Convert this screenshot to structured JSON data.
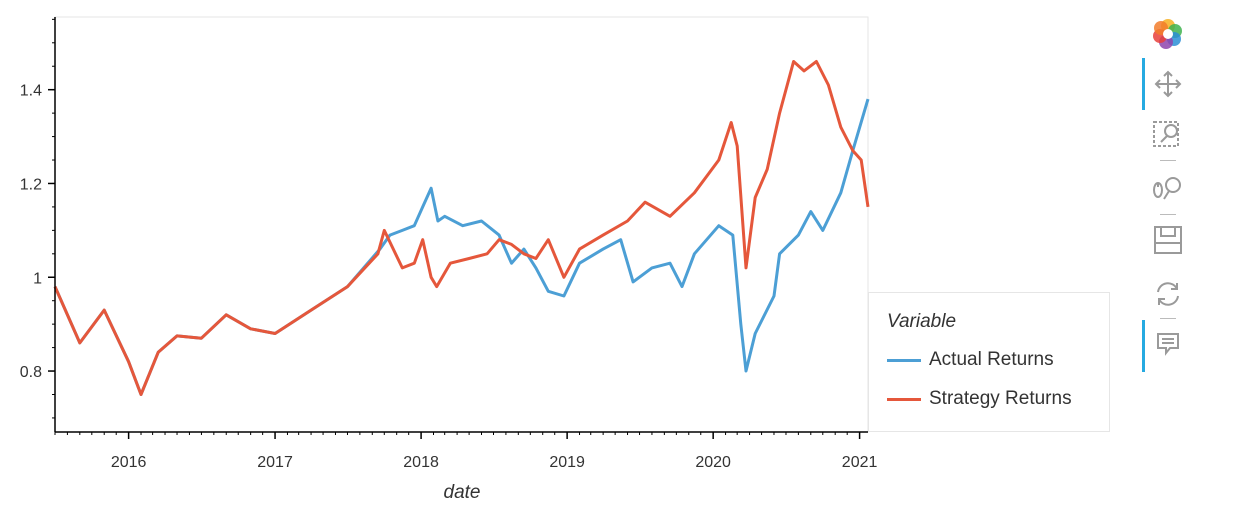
{
  "chart_data": {
    "type": "line",
    "title": "",
    "xlabel": "date",
    "ylabel": "",
    "xlim": [
      "2015-07-01",
      "2021-01-22"
    ],
    "ylim": [
      0.67,
      1.555
    ],
    "x_ticks": [
      "2016",
      "2017",
      "2018",
      "2019",
      "2020",
      "2021"
    ],
    "y_ticks": [
      "0.8",
      "1",
      "1.2",
      "1.4"
    ],
    "grid": false,
    "legend_title": "Variable",
    "legend_position": "right",
    "series": [
      {
        "name": "Actual Returns",
        "color": "#4c9fd5",
        "points": [
          [
            "2015-07-01",
            0.98
          ],
          [
            "2015-09-01",
            0.86
          ],
          [
            "2015-11-01",
            0.93
          ],
          [
            "2016-01-01",
            0.82
          ],
          [
            "2016-02-01",
            0.75
          ],
          [
            "2016-03-15",
            0.84
          ],
          [
            "2016-05-01",
            0.875
          ],
          [
            "2016-07-01",
            0.87
          ],
          [
            "2016-09-01",
            0.92
          ],
          [
            "2016-11-01",
            0.89
          ],
          [
            "2017-01-01",
            0.88
          ],
          [
            "2017-04-01",
            0.93
          ],
          [
            "2017-07-01",
            0.98
          ],
          [
            "2017-09-20",
            1.06
          ],
          [
            "2017-10-15",
            1.09
          ],
          [
            "2017-11-15",
            1.1
          ],
          [
            "2017-12-15",
            1.11
          ],
          [
            "2018-01-05",
            1.15
          ],
          [
            "2018-01-26",
            1.19
          ],
          [
            "2018-02-12",
            1.12
          ],
          [
            "2018-03-01",
            1.13
          ],
          [
            "2018-04-15",
            1.11
          ],
          [
            "2018-06-01",
            1.12
          ],
          [
            "2018-07-15",
            1.09
          ],
          [
            "2018-08-15",
            1.03
          ],
          [
            "2018-09-15",
            1.06
          ],
          [
            "2018-10-15",
            1.02
          ],
          [
            "2018-11-15",
            0.97
          ],
          [
            "2018-12-24",
            0.96
          ],
          [
            "2019-02-01",
            1.03
          ],
          [
            "2019-04-01",
            1.06
          ],
          [
            "2019-05-15",
            1.08
          ],
          [
            "2019-06-15",
            0.99
          ],
          [
            "2019-08-01",
            1.02
          ],
          [
            "2019-09-15",
            1.03
          ],
          [
            "2019-10-15",
            0.98
          ],
          [
            "2019-11-15",
            1.05
          ],
          [
            "2020-01-15",
            1.11
          ],
          [
            "2020-02-19",
            1.09
          ],
          [
            "2020-03-10",
            0.9
          ],
          [
            "2020-03-23",
            0.8
          ],
          [
            "2020-04-15",
            0.88
          ],
          [
            "2020-06-01",
            0.96
          ],
          [
            "2020-06-15",
            1.05
          ],
          [
            "2020-08-01",
            1.09
          ],
          [
            "2020-09-01",
            1.14
          ],
          [
            "2020-10-01",
            1.1
          ],
          [
            "2020-11-15",
            1.18
          ],
          [
            "2020-12-15",
            1.27
          ],
          [
            "2021-01-22",
            1.38
          ]
        ]
      },
      {
        "name": "Strategy Returns",
        "color": "#e5573b",
        "points": [
          [
            "2015-07-01",
            0.98
          ],
          [
            "2015-09-01",
            0.86
          ],
          [
            "2015-11-01",
            0.93
          ],
          [
            "2016-01-01",
            0.82
          ],
          [
            "2016-02-01",
            0.75
          ],
          [
            "2016-03-15",
            0.84
          ],
          [
            "2016-05-01",
            0.875
          ],
          [
            "2016-07-01",
            0.87
          ],
          [
            "2016-09-01",
            0.92
          ],
          [
            "2016-11-01",
            0.89
          ],
          [
            "2017-01-01",
            0.88
          ],
          [
            "2017-04-01",
            0.93
          ],
          [
            "2017-07-01",
            0.98
          ],
          [
            "2017-09-15",
            1.05
          ],
          [
            "2017-10-01",
            1.1
          ],
          [
            "2017-11-15",
            1.02
          ],
          [
            "2017-12-15",
            1.03
          ],
          [
            "2018-01-05",
            1.08
          ],
          [
            "2018-01-26",
            1.0
          ],
          [
            "2018-02-09",
            0.98
          ],
          [
            "2018-03-15",
            1.03
          ],
          [
            "2018-05-01",
            1.04
          ],
          [
            "2018-06-15",
            1.05
          ],
          [
            "2018-07-15",
            1.08
          ],
          [
            "2018-08-15",
            1.07
          ],
          [
            "2018-09-15",
            1.05
          ],
          [
            "2018-10-15",
            1.04
          ],
          [
            "2018-11-15",
            1.08
          ],
          [
            "2018-12-24",
            1.0
          ],
          [
            "2019-02-01",
            1.06
          ],
          [
            "2019-04-01",
            1.09
          ],
          [
            "2019-06-01",
            1.12
          ],
          [
            "2019-07-15",
            1.16
          ],
          [
            "2019-09-15",
            1.13
          ],
          [
            "2019-11-15",
            1.18
          ],
          [
            "2020-01-15",
            1.25
          ],
          [
            "2020-02-15",
            1.33
          ],
          [
            "2020-03-01",
            1.28
          ],
          [
            "2020-03-23",
            1.02
          ],
          [
            "2020-04-15",
            1.17
          ],
          [
            "2020-05-15",
            1.23
          ],
          [
            "2020-06-15",
            1.35
          ],
          [
            "2020-07-20",
            1.46
          ],
          [
            "2020-08-15",
            1.44
          ],
          [
            "2020-09-15",
            1.46
          ],
          [
            "2020-10-15",
            1.41
          ],
          [
            "2020-11-15",
            1.32
          ],
          [
            "2020-12-15",
            1.27
          ],
          [
            "2021-01-05",
            1.25
          ],
          [
            "2021-01-22",
            1.15
          ]
        ]
      }
    ]
  },
  "toolbar": {
    "tools": [
      {
        "name": "bokeh-logo-icon"
      },
      {
        "name": "pan-tool-icon"
      },
      {
        "name": "box-zoom-tool-icon"
      },
      {
        "name": "wheel-zoom-tool-icon"
      },
      {
        "name": "save-tool-icon"
      },
      {
        "name": "reset-tool-icon"
      },
      {
        "name": "hover-tool-icon"
      }
    ]
  }
}
